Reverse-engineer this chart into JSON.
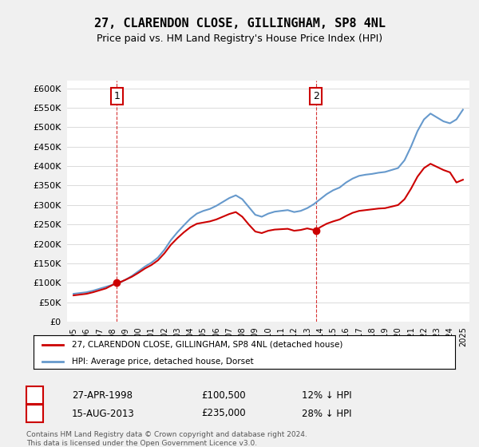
{
  "title": "27, CLARENDON CLOSE, GILLINGHAM, SP8 4NL",
  "subtitle": "Price paid vs. HM Land Registry's House Price Index (HPI)",
  "legend_line1": "27, CLARENDON CLOSE, GILLINGHAM, SP8 4NL (detached house)",
  "legend_line2": "HPI: Average price, detached house, Dorset",
  "annotation1_label": "1",
  "annotation1_date": "27-APR-1998",
  "annotation1_price": "£100,500",
  "annotation1_hpi": "12% ↓ HPI",
  "annotation2_label": "2",
  "annotation2_date": "15-AUG-2013",
  "annotation2_price": "£235,000",
  "annotation2_hpi": "28% ↓ HPI",
  "footer": "Contains HM Land Registry data © Crown copyright and database right 2024.\nThis data is licensed under the Open Government Licence v3.0.",
  "hpi_color": "#6699CC",
  "price_color": "#CC0000",
  "marker_color": "#CC0000",
  "vline_color": "#CC0000",
  "ylim": [
    0,
    620000
  ],
  "yticks": [
    0,
    50000,
    100000,
    150000,
    200000,
    250000,
    300000,
    350000,
    400000,
    450000,
    500000,
    550000,
    600000
  ],
  "background_color": "#F0F0F0",
  "plot_bg_color": "#FFFFFF"
}
